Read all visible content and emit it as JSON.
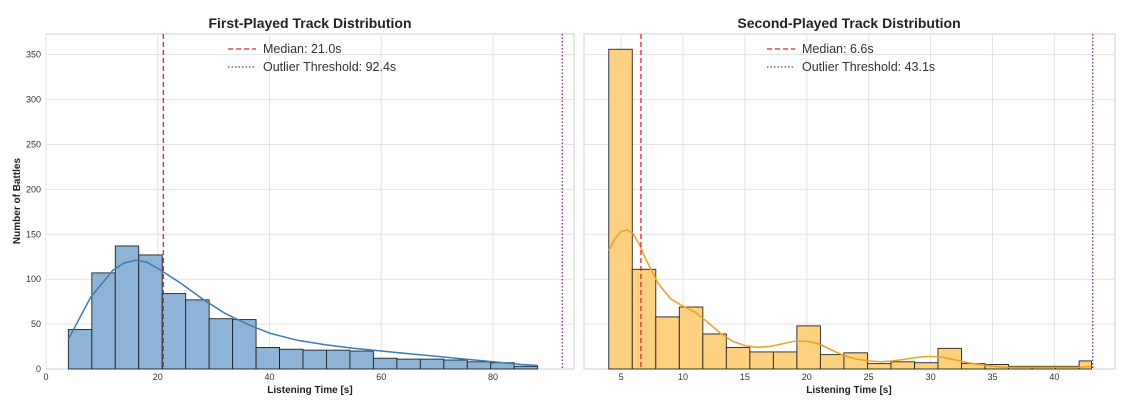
{
  "chart_data": [
    {
      "type": "histogram",
      "title": "First-Played Track Distribution",
      "xlabel": "Listening Time [s]",
      "ylabel": "Number of Battles",
      "xlim": [
        0,
        94.5
      ],
      "ylim": [
        0,
        373
      ],
      "xticks": [
        0,
        20,
        40,
        60,
        80
      ],
      "yticks": [
        0,
        50,
        100,
        150,
        200,
        250,
        300,
        350
      ],
      "bar_color": "#8db3d6",
      "kde_color": "#3d7bb3",
      "bins": [
        {
          "x0": 4.0,
          "x1": 8.2,
          "count": 44
        },
        {
          "x0": 8.2,
          "x1": 12.4,
          "count": 107
        },
        {
          "x0": 12.4,
          "x1": 16.6,
          "count": 137
        },
        {
          "x0": 16.6,
          "x1": 20.8,
          "count": 127
        },
        {
          "x0": 20.8,
          "x1": 25.0,
          "count": 84
        },
        {
          "x0": 25.0,
          "x1": 29.2,
          "count": 77
        },
        {
          "x0": 29.2,
          "x1": 33.4,
          "count": 56
        },
        {
          "x0": 33.4,
          "x1": 37.6,
          "count": 55
        },
        {
          "x0": 37.6,
          "x1": 41.8,
          "count": 24
        },
        {
          "x0": 41.8,
          "x1": 46.0,
          "count": 22
        },
        {
          "x0": 46.0,
          "x1": 50.2,
          "count": 21
        },
        {
          "x0": 50.2,
          "x1": 54.4,
          "count": 21
        },
        {
          "x0": 54.4,
          "x1": 58.6,
          "count": 20
        },
        {
          "x0": 58.6,
          "x1": 62.8,
          "count": 12
        },
        {
          "x0": 62.8,
          "x1": 67.0,
          "count": 11
        },
        {
          "x0": 67.0,
          "x1": 71.2,
          "count": 11
        },
        {
          "x0": 71.2,
          "x1": 75.4,
          "count": 10
        },
        {
          "x0": 75.4,
          "x1": 79.6,
          "count": 8
        },
        {
          "x0": 79.6,
          "x1": 83.8,
          "count": 7
        },
        {
          "x0": 83.8,
          "x1": 88.0,
          "count": 3
        }
      ],
      "kde": {
        "x": [
          4,
          8,
          12,
          14,
          16,
          18,
          20,
          24,
          28,
          32,
          36,
          40,
          45,
          50,
          55,
          60,
          65,
          70,
          75,
          80,
          85,
          88
        ],
        "y": [
          33,
          80,
          110,
          118,
          121,
          119,
          112,
          96,
          78,
          62,
          50,
          40,
          32,
          27,
          23,
          20,
          17,
          14,
          11,
          8,
          5,
          4
        ]
      },
      "median": {
        "value": 21.0,
        "label": "Median: 21.0s",
        "color": "#d62728"
      },
      "outlier": {
        "value": 92.4,
        "label": "Outlier Threshold: 92.4s",
        "color": "#7b2d8f"
      }
    },
    {
      "type": "histogram",
      "title": "Second-Played Track Distribution",
      "xlabel": "Listening Time [s]",
      "ylabel": "",
      "xlim": [
        2.0,
        44.9
      ],
      "ylim": [
        0,
        373
      ],
      "xticks": [
        5,
        10,
        15,
        20,
        25,
        30,
        35,
        40
      ],
      "yticks": [
        0,
        50,
        100,
        150,
        200,
        250,
        300,
        350
      ],
      "bar_color": "#fdd17f",
      "kde_color": "#f0a020",
      "bins": [
        {
          "x0": 4.0,
          "x1": 5.9,
          "count": 356
        },
        {
          "x0": 5.9,
          "x1": 7.8,
          "count": 111
        },
        {
          "x0": 7.8,
          "x1": 9.7,
          "count": 58
        },
        {
          "x0": 9.7,
          "x1": 11.6,
          "count": 69
        },
        {
          "x0": 11.6,
          "x1": 13.5,
          "count": 39
        },
        {
          "x0": 13.5,
          "x1": 15.4,
          "count": 24
        },
        {
          "x0": 15.4,
          "x1": 17.3,
          "count": 19
        },
        {
          "x0": 17.3,
          "x1": 19.2,
          "count": 19
        },
        {
          "x0": 19.2,
          "x1": 21.1,
          "count": 48
        },
        {
          "x0": 21.1,
          "x1": 23.0,
          "count": 16
        },
        {
          "x0": 23.0,
          "x1": 24.9,
          "count": 18
        },
        {
          "x0": 24.9,
          "x1": 26.8,
          "count": 6
        },
        {
          "x0": 26.8,
          "x1": 28.7,
          "count": 8
        },
        {
          "x0": 28.7,
          "x1": 30.6,
          "count": 7
        },
        {
          "x0": 30.6,
          "x1": 32.5,
          "count": 23
        },
        {
          "x0": 32.5,
          "x1": 34.4,
          "count": 6
        },
        {
          "x0": 34.4,
          "x1": 36.3,
          "count": 5
        },
        {
          "x0": 36.3,
          "x1": 38.2,
          "count": 3
        },
        {
          "x0": 38.2,
          "x1": 40.1,
          "count": 3
        },
        {
          "x0": 40.1,
          "x1": 42.0,
          "count": 3
        },
        {
          "x0": 42.0,
          "x1": 43.0,
          "count": 9
        }
      ],
      "kde": {
        "x": [
          4,
          4.5,
          5,
          5.5,
          6,
          6.5,
          7,
          8,
          9,
          10,
          11,
          12,
          13,
          14,
          15,
          16,
          17,
          18,
          19,
          20,
          21,
          22,
          23,
          24,
          25,
          26,
          27,
          28,
          29,
          30,
          31,
          32,
          33,
          34,
          35,
          36,
          38,
          40,
          42,
          43
        ],
        "y": [
          132,
          145,
          153,
          155,
          150,
          138,
          122,
          95,
          78,
          70,
          63,
          52,
          40,
          31,
          26,
          24,
          25,
          28,
          31,
          31,
          28,
          21,
          15,
          11,
          9,
          8,
          9,
          11,
          13,
          14,
          13,
          10,
          7,
          5,
          3,
          2,
          2,
          2,
          2,
          3
        ]
      },
      "median": {
        "value": 6.6,
        "label": "Median: 6.6s",
        "color": "#d62728"
      },
      "outlier": {
        "value": 43.1,
        "label": "Outlier Threshold: 43.1s",
        "color": "#7b2d8f"
      }
    }
  ]
}
